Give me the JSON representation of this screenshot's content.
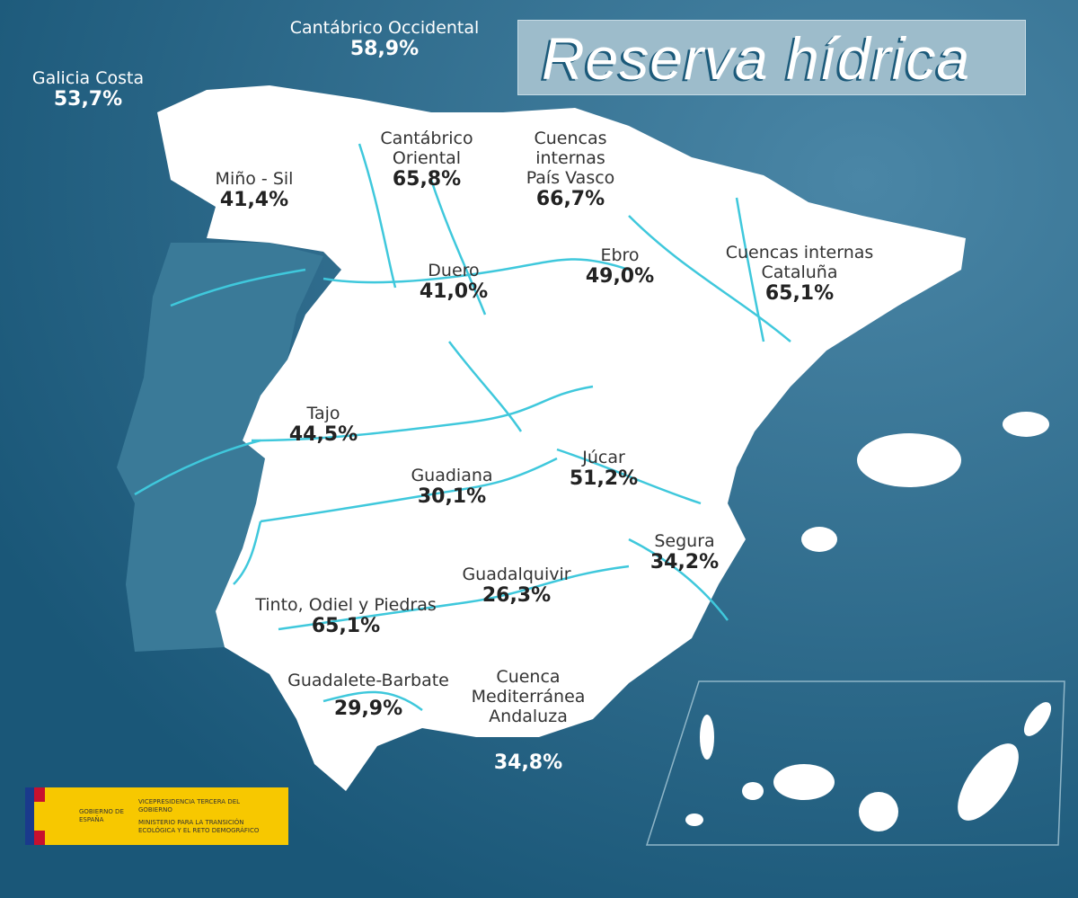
{
  "title": "Reserva hídrica",
  "colors": {
    "sea": "#1f5f80",
    "land": "#ffffff",
    "portugal": "#3a7a98",
    "rivers": "#3fc8dc",
    "title_box": "#9dbccb"
  },
  "basins": [
    {
      "name": "Galicia Costa",
      "value": "53,7%"
    },
    {
      "name": "Cantábrico Occidental",
      "value": "58,9%"
    },
    {
      "name": "Miño - Sil",
      "value": "41,4%"
    },
    {
      "name": "Cantábrico Oriental",
      "value": "65,8%"
    },
    {
      "name": "Cuencas internas País Vasco",
      "value": "66,7%"
    },
    {
      "name": "Duero",
      "value": "41,0%"
    },
    {
      "name": "Ebro",
      "value": "49,0%"
    },
    {
      "name": "Cuencas internas Cataluña",
      "value": "65,1%"
    },
    {
      "name": "Tajo",
      "value": "44,5%"
    },
    {
      "name": "Guadiana",
      "value": "30,1%"
    },
    {
      "name": "Júcar",
      "value": "51,2%"
    },
    {
      "name": "Segura",
      "value": "34,2%"
    },
    {
      "name": "Guadalquivir",
      "value": "26,3%"
    },
    {
      "name": "Tinto, Odiel y Piedras",
      "value": "65,1%"
    },
    {
      "name": "Guadalete-Barbate",
      "value": "29,9%"
    },
    {
      "name": "Cuenca Mediterránea Andaluza",
      "value": "34,8%"
    }
  ],
  "logo": {
    "gov": "GOBIERNO DE ESPAÑA",
    "vice": "VICEPRESIDENCIA TERCERA DEL GOBIERNO",
    "ministry": "MINISTERIO PARA LA TRANSICIÓN ECOLÓGICA Y EL RETO DEMOGRÁFICO"
  }
}
